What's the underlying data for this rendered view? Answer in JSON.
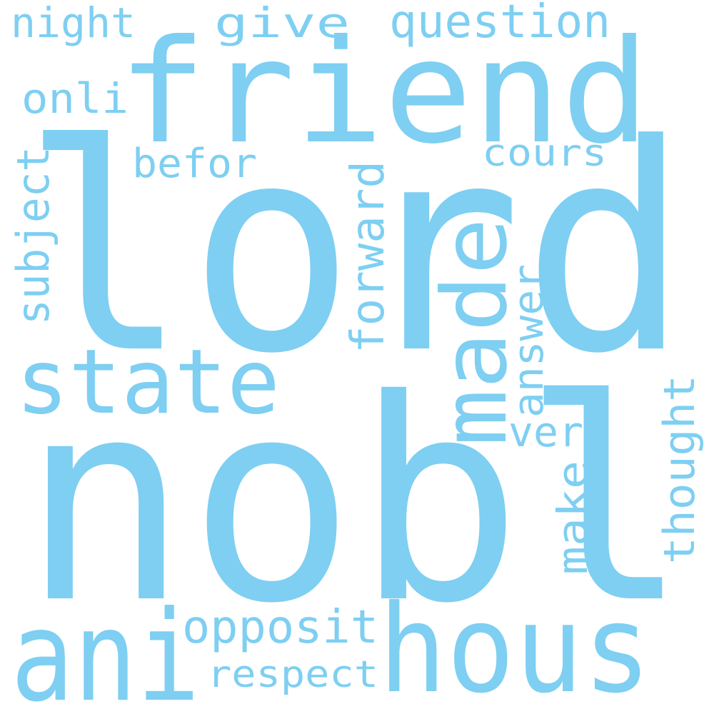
{
  "cloud": {
    "color": "#7ecff2",
    "background": "#ffffff",
    "words": {
      "lord": "lord",
      "nobl": "nobl",
      "friend": "friend",
      "state": "state",
      "ani": "ani",
      "hous": "hous",
      "made": "made",
      "opposit": "opposit",
      "respect": "respect",
      "forward": "forward",
      "subject": "subject",
      "answer": "answer",
      "thought": "thought",
      "veri": "veri",
      "make": "make",
      "question": "question",
      "night": "night",
      "give": "give",
      "onli": "onli",
      "befor": "befor",
      "cours": "cours"
    }
  }
}
